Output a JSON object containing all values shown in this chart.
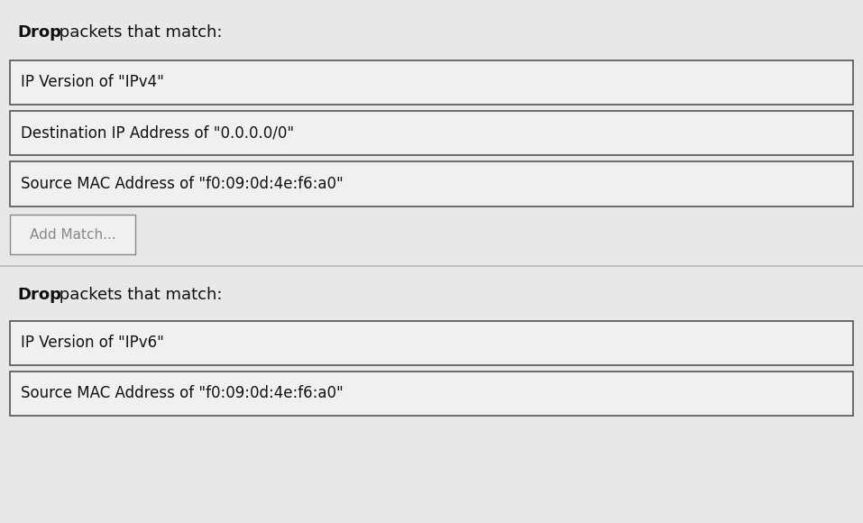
{
  "bg_color": "#e8e8e8",
  "box_bg_color": "#f0f0f0",
  "box_border_color": "#555555",
  "button_border_color": "#888888",
  "button_text_color": "#888888",
  "text_color": "#111111",
  "header1_text": " packets that match:",
  "header2_text": " packets that match:",
  "rule1_boxes": [
    "IP Version of \"IPv4\"",
    "Destination IP Address of \"0.0.0.0/0\"",
    "Source MAC Address of \"f0:09:0d:4e:f6:a0\""
  ],
  "rule2_boxes": [
    "IP Version of \"IPv6\"",
    "Source MAC Address of \"f0:09:0d:4e:f6:a0\""
  ],
  "add_match_label": "Add Match...",
  "font_size_header": 13,
  "font_size_box": 12,
  "font_size_button": 11,
  "separator_color": "#bbbbbb",
  "fig_width": 9.57,
  "fig_height": 5.8
}
